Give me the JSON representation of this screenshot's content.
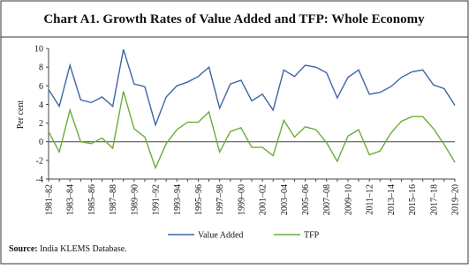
{
  "chart_data": {
    "type": "line",
    "title": "Chart A1. Growth Rates of Value Added and TFP: Whole Economy",
    "y_label": "Per cent",
    "source_label": "Source:",
    "source_text": " India KLEMS Database.",
    "categories": [
      "1981–82",
      null,
      "1983–84",
      null,
      "1985–86",
      null,
      "1987–88",
      null,
      "1989–90",
      null,
      "1991–92",
      null,
      "1993–94",
      null,
      "1995–96",
      null,
      "1997–98",
      null,
      "1999–00",
      null,
      "2001–02",
      null,
      "2003–04",
      null,
      "2005–06",
      null,
      "2007–08",
      null,
      "2009–10",
      null,
      "2011–12",
      null,
      "2013–14",
      null,
      "2015–16",
      null,
      "2017–18",
      null,
      "2019–20"
    ],
    "series": [
      {
        "name": "Value Added",
        "color": "#3b66a8",
        "values": [
          5.6,
          3.8,
          8.2,
          4.5,
          4.2,
          4.8,
          3.8,
          9.9,
          6.2,
          5.9,
          1.8,
          4.8,
          6.0,
          6.4,
          7.0,
          8.0,
          3.6,
          6.2,
          6.6,
          4.4,
          5.1,
          3.4,
          7.7,
          7.0,
          8.2,
          8.0,
          7.4,
          4.7,
          6.9,
          7.7,
          5.1,
          5.3,
          5.9,
          6.9,
          7.5,
          7.7,
          6.1,
          5.7,
          3.9
        ]
      },
      {
        "name": "TFP",
        "color": "#6aad3a",
        "values": [
          1.1,
          -1.1,
          3.4,
          0.0,
          -0.2,
          0.4,
          -0.7,
          5.4,
          1.4,
          0.5,
          -2.8,
          -0.2,
          1.3,
          2.1,
          2.1,
          3.2,
          -1.1,
          1.1,
          1.5,
          -0.6,
          -0.6,
          -1.5,
          2.3,
          0.5,
          1.6,
          1.3,
          -0.1,
          -2.1,
          0.6,
          1.3,
          -1.4,
          -1.0,
          0.9,
          2.2,
          2.7,
          2.7,
          1.4,
          -0.3,
          -2.2
        ]
      }
    ],
    "ylim": [
      -4,
      10
    ],
    "yticks": [
      -4,
      -2,
      0,
      2,
      4,
      6,
      8,
      10
    ]
  }
}
